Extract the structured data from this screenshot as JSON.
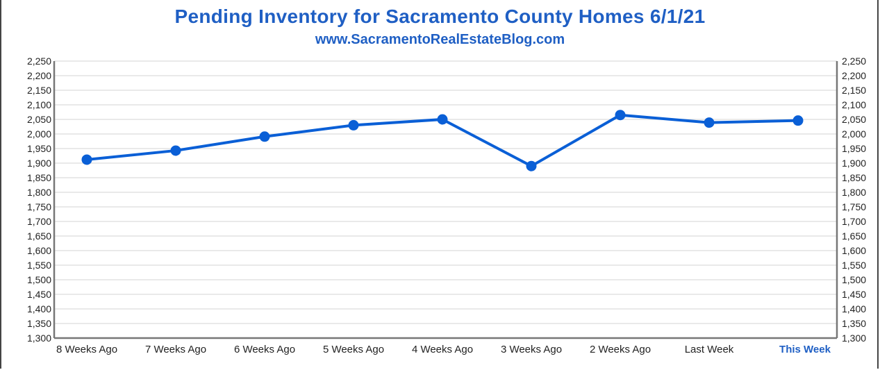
{
  "title": "Pending Inventory for Sacramento County Homes 6/1/21",
  "subtitle": "www.SacramentoRealEstateBlog.com",
  "colors": {
    "accent": "#1f5fc4",
    "line": "#0a5fd6",
    "grid": "#e2e2e2"
  },
  "chart_data": {
    "type": "line",
    "title": "Pending Inventory for Sacramento County Homes 6/1/21",
    "categories": [
      "8 Weeks Ago",
      "7 Weeks Ago",
      "6 Weeks Ago",
      "5 Weeks Ago",
      "4 Weeks Ago",
      "3 Weeks Ago",
      "2 Weeks Ago",
      "Last Week",
      "This Week"
    ],
    "highlighted_category": "This Week",
    "series": [
      {
        "values": [
          1912,
          1943,
          1991,
          2030,
          2050,
          1890,
          2065,
          2039,
          2046
        ]
      }
    ],
    "ylim": [
      1300,
      2250
    ],
    "ytick_step": 50,
    "ytick_labels": [
      "1,300",
      "1,350",
      "1,400",
      "1,450",
      "1,500",
      "1,550",
      "1,600",
      "1,650",
      "1,700",
      "1,750",
      "1,800",
      "1,850",
      "1,900",
      "1,950",
      "2,000",
      "2,050",
      "2,100",
      "2,150",
      "2,200",
      "2,250"
    ],
    "secondary_y_axis": true,
    "grid": "horizontal",
    "legend": "none"
  }
}
